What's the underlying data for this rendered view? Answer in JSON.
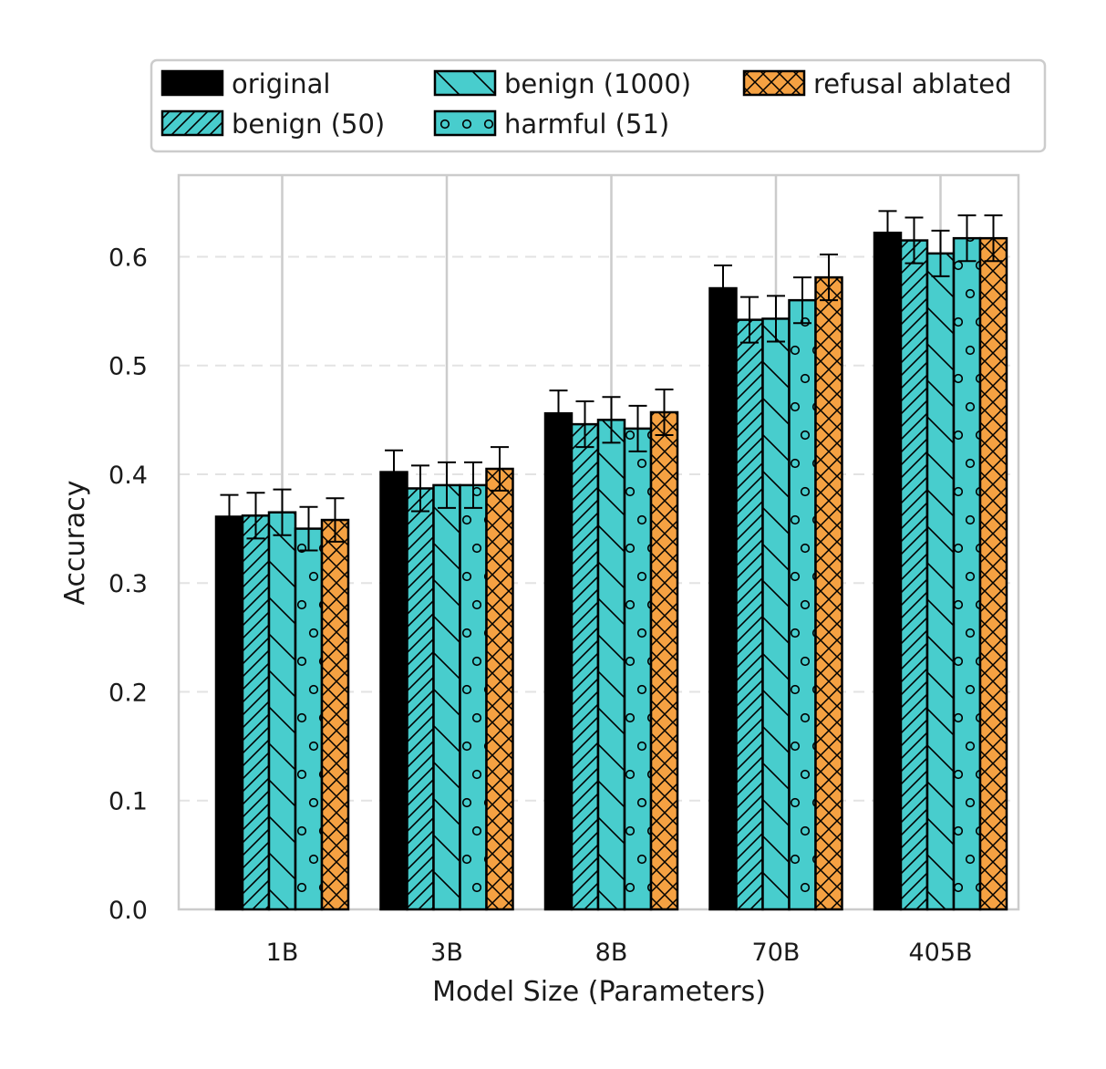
{
  "chart_data": {
    "type": "bar",
    "title": "",
    "xlabel": "Model Size (Parameters)",
    "ylabel": "Accuracy",
    "ylim": [
      0,
      0.675
    ],
    "yticks": [
      "0.0",
      "0.1",
      "0.2",
      "0.3",
      "0.4",
      "0.5",
      "0.6"
    ],
    "categories": [
      "1B",
      "3B",
      "8B",
      "70B",
      "405B"
    ],
    "grid": true,
    "legend_position": "top",
    "series": [
      {
        "name": "original",
        "color": "#000000",
        "pattern": "solid",
        "values": [
          0.361,
          0.402,
          0.456,
          0.571,
          0.622
        ],
        "errors": [
          0.02,
          0.02,
          0.021,
          0.021,
          0.02
        ]
      },
      {
        "name": "benign (50)",
        "color": "#48CDCD",
        "pattern": "hatch-forward",
        "values": [
          0.362,
          0.387,
          0.446,
          0.542,
          0.615
        ],
        "errors": [
          0.021,
          0.021,
          0.021,
          0.021,
          0.021
        ]
      },
      {
        "name": "benign (1000)",
        "color": "#48CDCD",
        "pattern": "hatch-back",
        "values": [
          0.365,
          0.39,
          0.45,
          0.543,
          0.603
        ],
        "errors": [
          0.021,
          0.021,
          0.021,
          0.021,
          0.021
        ]
      },
      {
        "name": "harmful (51)",
        "color": "#48CDCD",
        "pattern": "circles",
        "values": [
          0.35,
          0.39,
          0.442,
          0.56,
          0.617
        ],
        "errors": [
          0.02,
          0.021,
          0.021,
          0.021,
          0.021
        ]
      },
      {
        "name": "refusal ablated",
        "color": "#F5A142",
        "pattern": "crosshatch",
        "values": [
          0.358,
          0.405,
          0.457,
          0.581,
          0.617
        ],
        "errors": [
          0.02,
          0.02,
          0.021,
          0.021,
          0.021
        ]
      }
    ]
  }
}
